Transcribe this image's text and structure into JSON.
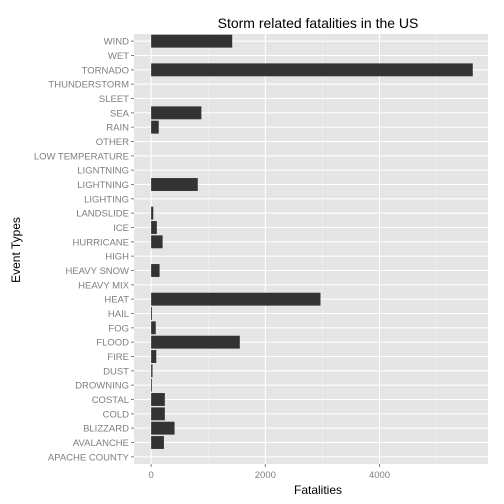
{
  "chart_data": {
    "type": "bar",
    "orientation": "horizontal",
    "title": "Storm related fatalities in the US",
    "xlabel": "Fatalities",
    "ylabel": "Event Types",
    "xlim": [
      -300,
      5900
    ],
    "xticks": [
      0,
      2000,
      4000
    ],
    "xtick_labels": [
      "0",
      "2000",
      "4000"
    ],
    "grid": true,
    "legend": "none",
    "categories": [
      "APACHE COUNTY",
      "AVALANCHE",
      "BLIZZARD",
      "COLD",
      "COSTAL",
      "DROWNING",
      "DUST",
      "FIRE",
      "FLOOD",
      "FOG",
      "HAIL",
      "HEAT",
      "HEAVY MIX",
      "HEAVY SNOW",
      "HIGH",
      "HURRICANE",
      "ICE",
      "LANDSLIDE",
      "LIGHTING",
      "LIGHTNING",
      "LIGNTNING",
      "LOW TEMPERATURE",
      "OTHER",
      "RAIN",
      "SEA",
      "SLEET",
      "THUNDERSTORM",
      "TORNADO",
      "WET",
      "WIND"
    ],
    "values": [
      0,
      224,
      410,
      240,
      240,
      2,
      24,
      90,
      1553,
      81,
      15,
      2966,
      0,
      148,
      0,
      201,
      100,
      38,
      0,
      817,
      0,
      0,
      0,
      133,
      880,
      0,
      0,
      5633,
      0,
      1420
    ]
  },
  "colors": {
    "panel": "#e5e5e5",
    "grid_major": "#ffffff",
    "grid_minor": "#f2f2f2",
    "bar": "#333333",
    "tick_text": "#7f7f7f",
    "title_text": "#000000"
  }
}
